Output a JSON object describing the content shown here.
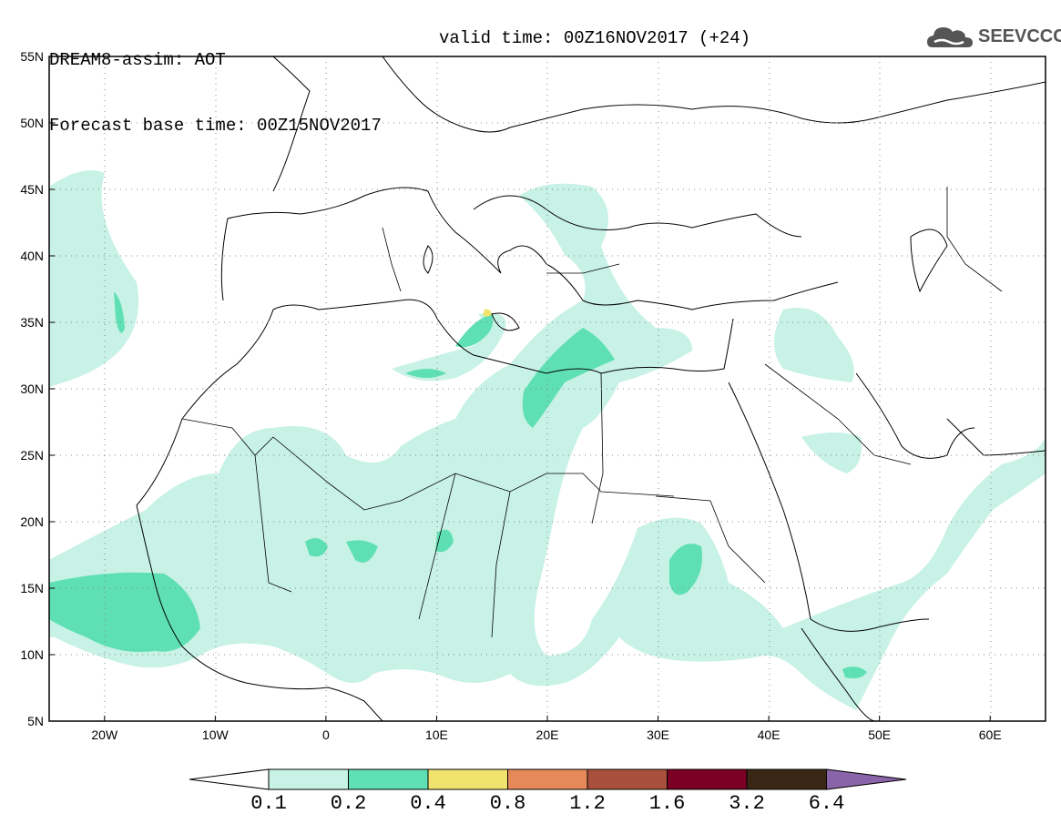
{
  "header": {
    "line1": "DREAM8-assim: AOT",
    "line2": "Forecast base time: 00Z15NOV2017",
    "valid": "valid time: 00Z16NOV2017 (+24)"
  },
  "logo": {
    "text": "SEEVCCC",
    "icon": "cloud-icon"
  },
  "map": {
    "lon_range": [
      -25,
      65
    ],
    "lat_range": [
      5,
      55
    ],
    "lat_ticks": [
      "55N",
      "50N",
      "45N",
      "40N",
      "35N",
      "30N",
      "25N",
      "20N",
      "15N",
      "10N",
      "5N"
    ],
    "lon_ticks": [
      "20W",
      "10W",
      "0",
      "10E",
      "20E",
      "30E",
      "40E",
      "50E",
      "60E"
    ],
    "grid": "dotted"
  },
  "colorbar": {
    "colors": [
      "#ffffff",
      "#c8f2e6",
      "#5ee0b4",
      "#f0e46e",
      "#e6895a",
      "#a9503c",
      "#7a0026",
      "#3a2614",
      "#8a64a8"
    ],
    "labels": [
      "0.1",
      "0.2",
      "0.4",
      "0.8",
      "1.2",
      "1.6",
      "3.2",
      "6.4"
    ]
  }
}
